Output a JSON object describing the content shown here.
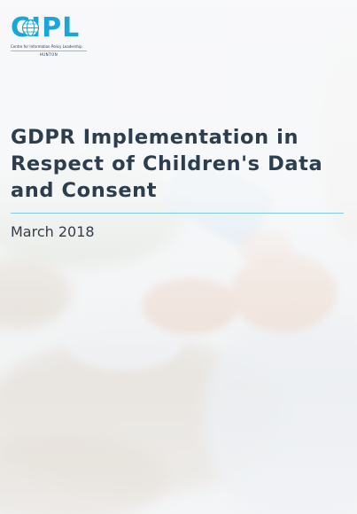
{
  "logo": {
    "wordmark": "CIPL",
    "org_name": "Centre for Information Policy Leadership",
    "firm": "HUNTON"
  },
  "cover": {
    "title": "GDPR Implementation in Respect of Children's Data and Consent",
    "date": "March 2018"
  },
  "colors": {
    "accent": "#1aa6d9",
    "title_text": "#2c3e4e",
    "divider": "#7fc8e8"
  }
}
